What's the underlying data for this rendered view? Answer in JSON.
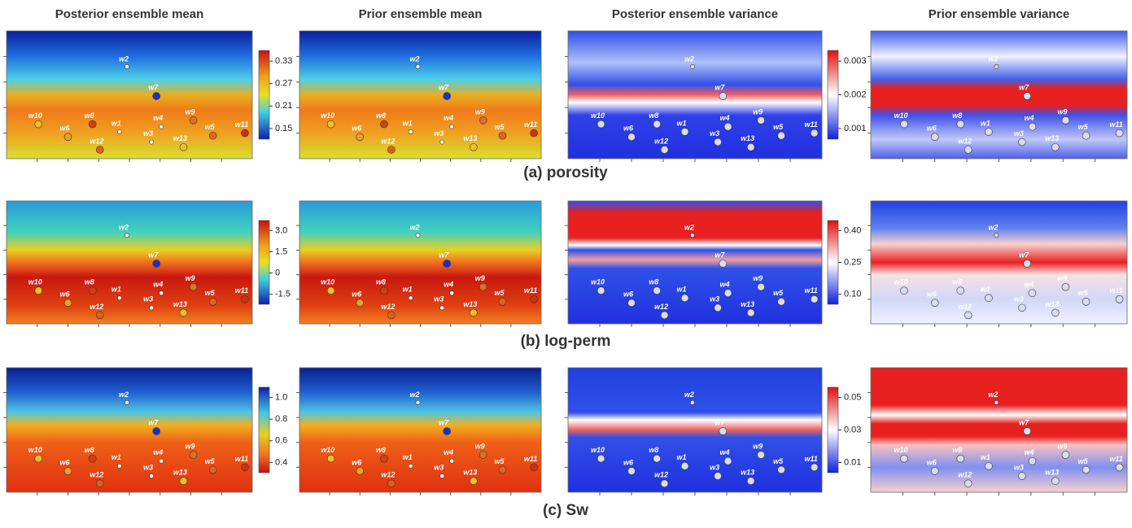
{
  "columns": [
    "Posterior ensemble mean",
    "Prior ensemble mean",
    "Posterior ensemble variance",
    "Prior ensemble variance"
  ],
  "wells": [
    "w1",
    "w2",
    "w3",
    "w4",
    "w5",
    "w6",
    "w7",
    "w8",
    "w9",
    "w10",
    "w11",
    "w12",
    "w13"
  ],
  "rows": [
    {
      "caption": "(a) porosity",
      "mean_colorbar_ticks": [
        0.33,
        0.27,
        0.21,
        0.15
      ],
      "variance_colorbar_ticks": [
        0.003,
        0.002,
        0.001
      ]
    },
    {
      "caption": "(b) log-perm",
      "mean_colorbar_ticks": [
        {
          "value": 3,
          "label": "3.0"
        },
        1.5,
        0,
        -1.5
      ],
      "variance_colorbar_ticks": [
        {
          "value": 0.4,
          "label": "0.40"
        },
        0.25,
        {
          "value": 0.1,
          "label": "0.10"
        }
      ]
    },
    {
      "caption": "(c) Sw",
      "mean_colorbar_ticks": [
        {
          "value": 1,
          "label": "1.0"
        },
        0.8,
        0.6,
        0.4
      ],
      "variance_colorbar_ticks": [
        0.05,
        0.03,
        0.01
      ]
    }
  ]
}
